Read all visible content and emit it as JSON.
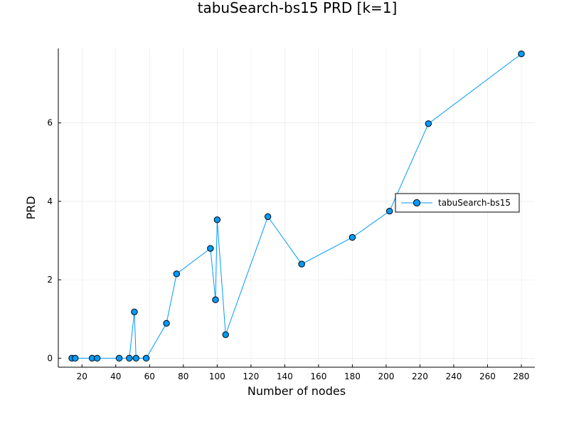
{
  "chart_data": {
    "type": "line",
    "title": "tabuSearch-bs15 PRD [k=1]",
    "xlabel": "Number of nodes",
    "ylabel": "PRD",
    "xlim": [
      6.0,
      288.0
    ],
    "ylim": [
      -0.23,
      7.9
    ],
    "xticks": [
      20,
      40,
      60,
      80,
      100,
      120,
      140,
      160,
      180,
      200,
      220,
      240,
      260,
      280
    ],
    "yticks": [
      0,
      2,
      4,
      6
    ],
    "grid": true,
    "legend_position": "right",
    "series": [
      {
        "name": "tabuSearch-bs15",
        "color": "#009AFA",
        "marker": "circle",
        "x": [
          14,
          16,
          26,
          29,
          42,
          48,
          51,
          52,
          58,
          70,
          76,
          96,
          99,
          100,
          105,
          130,
          150,
          180,
          202,
          225,
          280
        ],
        "y": [
          0.0,
          0.0,
          0.0,
          0.0,
          0.0,
          0.0,
          1.18,
          0.0,
          0.0,
          0.89,
          2.15,
          2.8,
          1.49,
          3.53,
          0.6,
          3.61,
          2.4,
          3.08,
          3.75,
          5.98,
          7.76
        ]
      }
    ]
  }
}
